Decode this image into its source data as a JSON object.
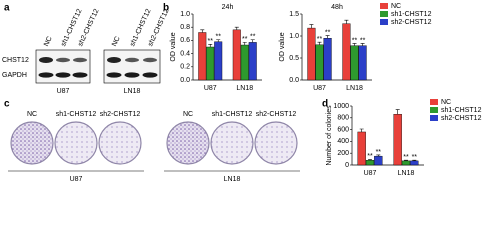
{
  "panel_labels": [
    "a",
    "b",
    "c",
    "d"
  ],
  "blot": {
    "lanes": [
      "NC",
      "sh1-CHST12",
      "sh2-CHST12",
      "NC",
      "sh1-CHST12",
      "sh2-CHST12"
    ],
    "rows": [
      "CHST12",
      "GAPDH"
    ],
    "groups": [
      "U87",
      "LN18"
    ]
  },
  "colony": {
    "plates": [
      "NC",
      "sh1-CHST12",
      "sh2-CHST12",
      "NC",
      "sh1-CHST12",
      "sh2-CHST12"
    ],
    "groups": [
      "U87",
      "LN18"
    ]
  },
  "chart_data": [
    {
      "type": "bar",
      "title": "24h",
      "y_label": "OD value",
      "categories": [
        "U87",
        "LN18"
      ],
      "series": [
        {
          "color": "#e8403a",
          "values": [
            0.72,
            0.76
          ],
          "errors": [
            0.04,
            0.04
          ]
        },
        {
          "color": "#2e9a2e",
          "values": [
            0.5,
            0.53
          ],
          "errors": [
            0.04,
            0.04
          ],
          "significance": [
            "**",
            "**"
          ]
        },
        {
          "color": "#2b3fc8",
          "values": [
            0.58,
            0.57
          ],
          "errors": [
            0.03,
            0.04
          ],
          "significance": [
            "**",
            "**"
          ]
        }
      ],
      "ylim": [
        0,
        1.0
      ],
      "yticks": [
        {
          "value": 0,
          "label": "0.0"
        },
        0.2,
        0.4,
        0.6,
        0.8,
        {
          "value": 1,
          "label": "1.0"
        }
      ]
    },
    {
      "type": "bar",
      "title": "48h",
      "y_label": "OD value",
      "categories": [
        "U87",
        "LN18"
      ],
      "legend": "right",
      "series": [
        {
          "name": "NC",
          "color": "#e8403a",
          "values": [
            1.18,
            1.28
          ],
          "errors": [
            0.08,
            0.08
          ]
        },
        {
          "name": "sh1-CHST12",
          "color": "#2e9a2e",
          "values": [
            0.8,
            0.78
          ],
          "errors": [
            0.06,
            0.05
          ],
          "significance": [
            "**",
            "**"
          ]
        },
        {
          "name": "sh2-CHST12",
          "color": "#2b3fc8",
          "values": [
            0.95,
            0.78
          ],
          "errors": [
            0.06,
            0.05
          ],
          "significance": [
            "**",
            "**"
          ]
        }
      ],
      "ylim": [
        0,
        1.5
      ],
      "yticks": [
        {
          "value": 0,
          "label": "0.0"
        },
        0.5,
        {
          "value": 1,
          "label": "1.0"
        },
        1.5
      ]
    },
    {
      "type": "bar",
      "y_label": "Number of colonies",
      "categories": [
        "U87",
        "LN18"
      ],
      "legend": "right",
      "series": [
        {
          "name": "NC",
          "color": "#e8403a",
          "values": [
            560,
            860
          ],
          "errors": [
            50,
            80
          ]
        },
        {
          "name": "sh1-CHST12",
          "color": "#2e9a2e",
          "values": [
            80,
            70
          ],
          "errors": [
            15,
            12
          ],
          "significance": [
            "**",
            "**"
          ]
        },
        {
          "name": "sh2-CHST12",
          "color": "#2b3fc8",
          "values": [
            150,
            70
          ],
          "errors": [
            20,
            12
          ],
          "significance": [
            "**",
            "**"
          ]
        }
      ],
      "ylim": [
        0,
        1000
      ],
      "yticks": [
        0,
        200,
        400,
        600,
        800,
        1000
      ]
    }
  ]
}
